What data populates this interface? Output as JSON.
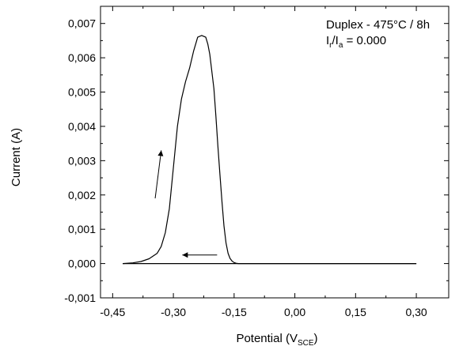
{
  "chart_data": {
    "type": "line",
    "title": "",
    "xlabel": "Potential",
    "xlabel_sub": "SCE",
    "xlabel_prefix": "(V",
    "xlabel_suffix": ")",
    "ylabel": "Current (A)",
    "xlim": [
      -0.48,
      0.38
    ],
    "ylim": [
      -0.001,
      0.0075
    ],
    "x_ticks": [
      -0.45,
      -0.3,
      -0.15,
      0.0,
      0.15,
      0.3
    ],
    "x_tick_labels": [
      "-0,45",
      "-0,30",
      "-0,15",
      "0,00",
      "0,15",
      "0,30"
    ],
    "y_ticks": [
      -0.001,
      0.0,
      0.001,
      0.002,
      0.003,
      0.004,
      0.005,
      0.006,
      0.007
    ],
    "y_tick_labels": [
      "-0,001",
      "0,000",
      "0,001",
      "0,002",
      "0,003",
      "0,004",
      "0,005",
      "0,006",
      "0,007"
    ],
    "grid": false,
    "annotation": {
      "line1": "Duplex - 475°C / 8h",
      "line2_a": "I",
      "line2_sub_r": "r",
      "line2_b": "/I",
      "line2_sub_a": "a",
      "line2_c": " = 0.000"
    },
    "series": [
      {
        "x": [
          -0.425,
          -0.4,
          -0.38,
          -0.36,
          -0.34,
          -0.33,
          -0.32,
          -0.31,
          -0.3,
          -0.29,
          -0.28,
          -0.27,
          -0.26,
          -0.25,
          -0.24,
          -0.23,
          -0.22,
          -0.215,
          -0.21,
          -0.2,
          -0.195,
          -0.19,
          -0.185,
          -0.18,
          -0.175,
          -0.17,
          -0.165,
          -0.16,
          -0.155,
          -0.15,
          -0.145,
          -0.14,
          -0.13,
          -0.12,
          -0.1,
          0.0,
          0.1,
          0.2,
          0.3
        ],
        "y": [
          0.0,
          2e-05,
          6e-05,
          0.00014,
          0.0003,
          0.0005,
          0.0009,
          0.0016,
          0.0028,
          0.004,
          0.0048,
          0.0053,
          0.0057,
          0.0062,
          0.0066,
          0.00665,
          0.0066,
          0.0064,
          0.0061,
          0.0051,
          0.0043,
          0.0034,
          0.0026,
          0.0018,
          0.0011,
          0.0006,
          0.0003,
          0.00015,
          7e-05,
          3e-05,
          1e-05,
          0.0,
          0.0,
          0.0,
          0.0,
          0.0,
          0.0,
          0.0,
          0.0
        ]
      }
    ],
    "return_line": {
      "x": [
        0.3,
        -0.425
      ],
      "y": [
        0.0,
        0.0
      ]
    },
    "arrows": [
      {
        "from": [
          -0.345,
          0.0019
        ],
        "to": [
          -0.33,
          0.0033
        ]
      },
      {
        "from": [
          -0.192,
          0.00025
        ],
        "to": [
          -0.278,
          0.00025
        ]
      }
    ]
  }
}
